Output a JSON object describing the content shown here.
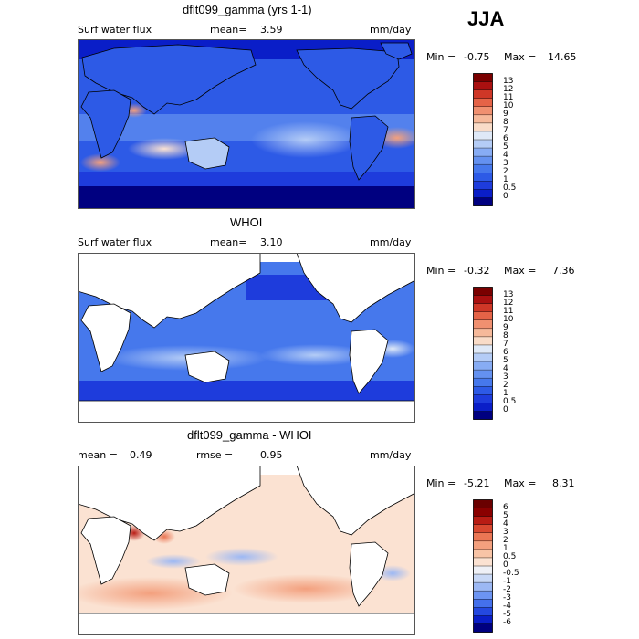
{
  "season": "JJA",
  "panels": [
    {
      "title": "dflt099_gamma (yrs 1-1)",
      "variable": "Surf water flux",
      "mean_label": "mean=",
      "mean_value": "3.59",
      "units": "mm/day",
      "min_label": "Min =",
      "min_value": "-0.75",
      "max_label": "Max =",
      "max_value": "14.65"
    },
    {
      "title": "WHOI",
      "variable": "Surf water flux",
      "mean_label": "mean=",
      "mean_value": "3.10",
      "units": "mm/day",
      "min_label": "Min =",
      "min_value": "-0.32",
      "max_label": "Max =",
      "max_value": "7.36"
    },
    {
      "title": "dflt099_gamma - WHOI",
      "mean_label": "mean =",
      "mean_value": "0.49",
      "rmse_label": "rmse =",
      "rmse_value": "0.95",
      "units": "mm/day",
      "min_label": "Min =",
      "min_value": "-5.21",
      "max_label": "Max =",
      "max_value": "8.31"
    }
  ],
  "chart_data": [
    {
      "type": "heatmap",
      "title": "dflt099_gamma (yrs 1-1)",
      "variable": "Surf water flux",
      "units": "mm/day",
      "mean": 3.59,
      "min": -0.75,
      "max": 14.65,
      "colorbar_levels": [
        "0",
        "0.5",
        "1",
        "2",
        "3",
        "4",
        "5",
        "6",
        "7",
        "8",
        "9",
        "10",
        "11",
        "12",
        "13"
      ],
      "colorbar_colors": [
        "#000080",
        "#0a1ec8",
        "#1e3cdc",
        "#2d5ae6",
        "#4678ec",
        "#6491f0",
        "#87acf4",
        "#b4ccf6",
        "#dfe9f7",
        "#f9dcc8",
        "#f6b99a",
        "#f09070",
        "#e56347",
        "#cf3727",
        "#aa1010",
        "#7a0000"
      ]
    },
    {
      "type": "heatmap",
      "title": "WHOI",
      "variable": "Surf water flux",
      "units": "mm/day",
      "mean": 3.1,
      "min": -0.32,
      "max": 7.36,
      "colorbar_levels": [
        "0",
        "0.5",
        "1",
        "2",
        "3",
        "4",
        "5",
        "6",
        "7",
        "8",
        "9",
        "10",
        "11",
        "12",
        "13"
      ],
      "colorbar_colors": [
        "#000080",
        "#0a1ec8",
        "#1e3cdc",
        "#2d5ae6",
        "#4678ec",
        "#6491f0",
        "#87acf4",
        "#b4ccf6",
        "#dfe9f7",
        "#f9dcc8",
        "#f6b99a",
        "#f09070",
        "#e56347",
        "#cf3727",
        "#aa1010",
        "#7a0000"
      ]
    },
    {
      "type": "heatmap",
      "title": "dflt099_gamma - WHOI",
      "units": "mm/day",
      "mean": 0.49,
      "rmse": 0.95,
      "min": -5.21,
      "max": 8.31,
      "colorbar_levels": [
        "-6",
        "-5",
        "-4",
        "-3",
        "-2",
        "-1",
        "-0.5",
        "0",
        "0.5",
        "1",
        "2",
        "3",
        "4",
        "5",
        "6"
      ],
      "colorbar_colors": [
        "#000080",
        "#0a1ec8",
        "#2448e0",
        "#4470ec",
        "#6c94f2",
        "#9cb8f4",
        "#c8d8f6",
        "#eef0f6",
        "#fbe2d2",
        "#f8c4a6",
        "#f3a07e",
        "#ea7654",
        "#d84830",
        "#b81c14",
        "#8a0000",
        "#6a0000"
      ]
    }
  ]
}
